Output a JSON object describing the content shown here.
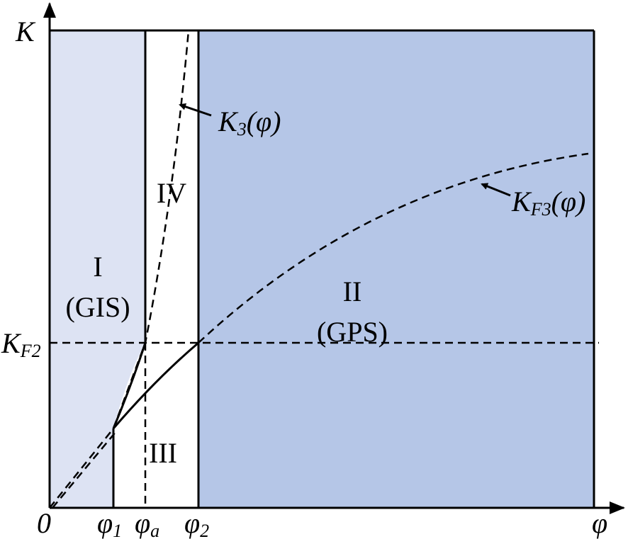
{
  "axes": {
    "y_label": "K",
    "x_label": "φ",
    "origin": "0"
  },
  "y_ticks": [
    {
      "base": "K",
      "sub": "F2"
    }
  ],
  "x_ticks": [
    {
      "base": "φ",
      "sub": "1"
    },
    {
      "base": "φ",
      "sub": "a"
    },
    {
      "base": "φ",
      "sub": "2"
    }
  ],
  "regions": [
    {
      "numeral": "I",
      "name": "(GIS)"
    },
    {
      "numeral": "II",
      "name": "(GPS)"
    },
    {
      "numeral": "III"
    },
    {
      "numeral": "IV"
    }
  ],
  "curves": [
    {
      "base": "K",
      "sub": "3",
      "arg": "(φ)"
    },
    {
      "base": "K",
      "sub": "F3",
      "arg": "(φ)"
    }
  ]
}
